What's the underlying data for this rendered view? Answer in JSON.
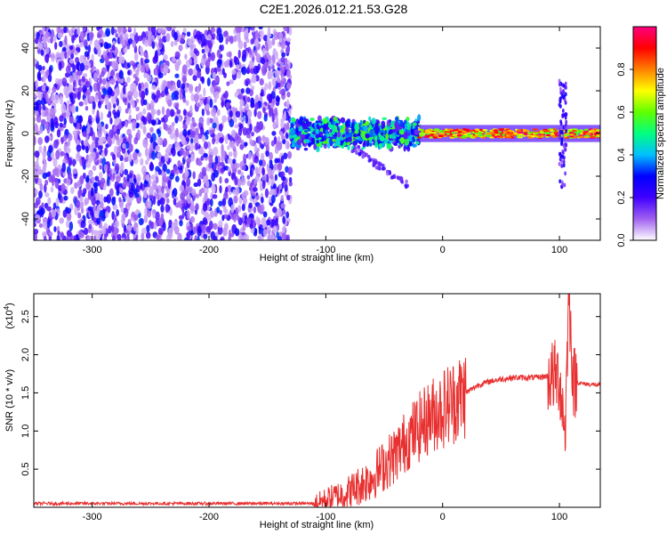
{
  "title": "C2E1.2026.012.21.53.G28",
  "chart_data": [
    {
      "type": "heatmap",
      "title": "C2E1.2026.012.21.53.G28",
      "xlabel": "Height of straight line (km)",
      "ylabel": "Frequency (Hz)",
      "xlim": [
        -350,
        135
      ],
      "ylim": [
        -50,
        50
      ],
      "xticks": [
        -300,
        -200,
        -100,
        0,
        100
      ],
      "yticks": [
        -40,
        -20,
        0,
        20,
        40
      ],
      "colorbar": {
        "label": "Normalized spectral amplitude",
        "range": [
          0,
          1
        ],
        "ticks": [
          "0.0",
          "0.2",
          "0.4",
          "0.6",
          "0.8"
        ],
        "colors": [
          "#ffffff",
          "#a060f0",
          "#4000ff",
          "#0000ff",
          "#00c0ff",
          "#00ff80",
          "#60ff00",
          "#ffff00",
          "#ff8000",
          "#ff0000",
          "#ff0080"
        ]
      },
      "regions": [
        {
          "x": [
            -350,
            -130
          ],
          "freq": [
            -50,
            50
          ],
          "amplitude": "low, broadband noise"
        },
        {
          "x": [
            -130,
            -20
          ],
          "freq": [
            -8,
            8
          ],
          "amplitude": "medium, scattered"
        },
        {
          "x": [
            -20,
            135
          ],
          "freq": [
            -2,
            2
          ],
          "amplitude": "high, narrow line near 0 Hz"
        },
        {
          "x": [
            100,
            110
          ],
          "freq": [
            -25,
            25
          ],
          "amplitude": "spike"
        }
      ]
    },
    {
      "type": "line",
      "xlabel": "Height of straight line (km)",
      "ylabel": "SNR (10 * v/v)",
      "yscale_label": "(x10",
      "yscale_exp": "4",
      "xlim": [
        -350,
        135
      ],
      "ylim": [
        0,
        2.8
      ],
      "xticks": [
        -300,
        -200,
        -100,
        0,
        100
      ],
      "yticks": [
        "0.5",
        "1.0",
        "1.5",
        "2.0",
        "2.5"
      ],
      "series": [
        {
          "name": "SNR",
          "color": "#e83030",
          "x": [
            -350,
            -300,
            -250,
            -200,
            -150,
            -110,
            -100,
            -90,
            -80,
            -70,
            -60,
            -50,
            -40,
            -30,
            -20,
            -10,
            0,
            10,
            20,
            30,
            40,
            50,
            60,
            70,
            80,
            90,
            95,
            100,
            105,
            108,
            112,
            120,
            135
          ],
          "y": [
            0.05,
            0.05,
            0.05,
            0.05,
            0.05,
            0.05,
            0.1,
            0.15,
            0.2,
            0.3,
            0.4,
            0.55,
            0.7,
            0.9,
            1.05,
            1.2,
            1.3,
            1.4,
            1.5,
            1.6,
            1.65,
            1.68,
            1.7,
            1.7,
            1.7,
            1.72,
            1.72,
            1.7,
            1.0,
            2.8,
            1.65,
            1.62,
            1.6
          ]
        }
      ]
    }
  ]
}
